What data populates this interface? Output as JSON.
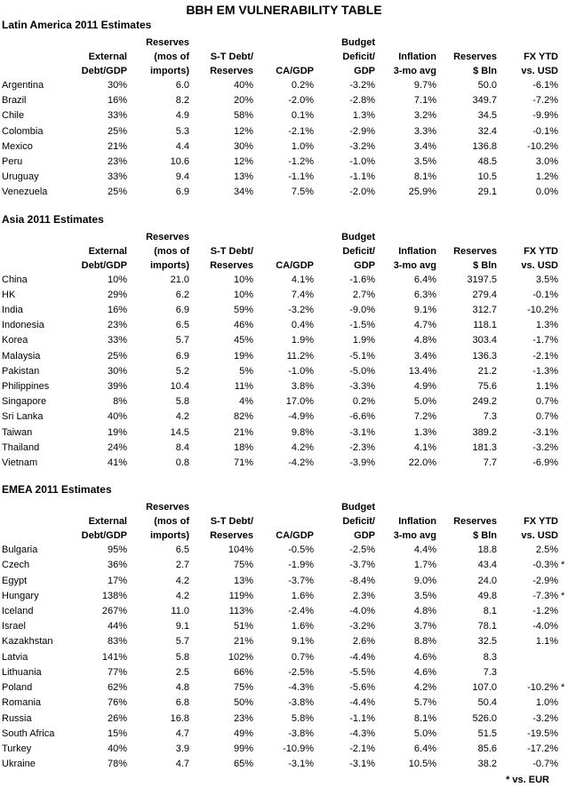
{
  "title": "BBH EM VULNERABILITY TABLE",
  "footnote": "* vs. EUR",
  "columns": [
    {
      "id": "country",
      "label": ""
    },
    {
      "id": "external-debt-gdp",
      "label": "External\nDebt/GDP"
    },
    {
      "id": "reserves-mos-of-imports",
      "label": "Reserves\n(mos of\nimports)"
    },
    {
      "id": "st-debt-reserves",
      "label": "S-T Debt/\nReserves"
    },
    {
      "id": "ca-gdp",
      "label": "CA/GDP"
    },
    {
      "id": "budget-deficit-gdp",
      "label": "Budget\nDeficit/\nGDP"
    },
    {
      "id": "inflation-3mo-avg",
      "label": "Inflation\n3-mo avg"
    },
    {
      "id": "reserves-bln",
      "label": "Reserves\n$ Bln"
    },
    {
      "id": "fx-ytd-vs-usd",
      "label": "FX YTD\nvs. USD"
    },
    {
      "id": "footnote-marker",
      "label": ""
    }
  ],
  "sections": [
    {
      "name": "Latin America 2011 Estimates",
      "rows": [
        {
          "country": "Argentina",
          "values": [
            "30%",
            "6.0",
            "40%",
            "0.2%",
            "-3.2%",
            "9.7%",
            "50.0",
            "-6.1%"
          ],
          "note": ""
        },
        {
          "country": "Brazil",
          "values": [
            "16%",
            "8.2",
            "20%",
            "-2.0%",
            "-2.8%",
            "7.1%",
            "349.7",
            "-7.2%"
          ],
          "note": ""
        },
        {
          "country": "Chile",
          "values": [
            "33%",
            "4.9",
            "58%",
            "0.1%",
            "1.3%",
            "3.2%",
            "34.5",
            "-9.9%"
          ],
          "note": ""
        },
        {
          "country": "Colombia",
          "values": [
            "25%",
            "5.3",
            "12%",
            "-2.1%",
            "-2.9%",
            "3.3%",
            "32.4",
            "-0.1%"
          ],
          "note": ""
        },
        {
          "country": "Mexico",
          "values": [
            "21%",
            "4.4",
            "30%",
            "1.0%",
            "-3.2%",
            "3.4%",
            "136.8",
            "-10.2%"
          ],
          "note": ""
        },
        {
          "country": "Peru",
          "values": [
            "23%",
            "10.6",
            "12%",
            "-1.2%",
            "-1.0%",
            "3.5%",
            "48.5",
            "3.0%"
          ],
          "note": ""
        },
        {
          "country": "Uruguay",
          "values": [
            "33%",
            "9.4",
            "13%",
            "-1.1%",
            "-1.1%",
            "8.1%",
            "10.5",
            "1.2%"
          ],
          "note": ""
        },
        {
          "country": "Venezuela",
          "values": [
            "25%",
            "6.9",
            "34%",
            "7.5%",
            "-2.0%",
            "25.9%",
            "29.1",
            "0.0%"
          ],
          "note": ""
        }
      ]
    },
    {
      "name": "Asia 2011 Estimates",
      "rows": [
        {
          "country": "China",
          "values": [
            "10%",
            "21.0",
            "10%",
            "4.1%",
            "-1.6%",
            "6.4%",
            "3197.5",
            "3.5%"
          ],
          "note": ""
        },
        {
          "country": "HK",
          "values": [
            "29%",
            "6.2",
            "10%",
            "7.4%",
            "2.7%",
            "6.3%",
            "279.4",
            "-0.1%"
          ],
          "note": ""
        },
        {
          "country": "India",
          "values": [
            "16%",
            "6.9",
            "59%",
            "-3.2%",
            "-9.0%",
            "9.1%",
            "312.7",
            "-10.2%"
          ],
          "note": ""
        },
        {
          "country": "Indonesia",
          "values": [
            "23%",
            "6.5",
            "46%",
            "0.4%",
            "-1.5%",
            "4.7%",
            "118.1",
            "1.3%"
          ],
          "note": ""
        },
        {
          "country": "Korea",
          "values": [
            "33%",
            "5.7",
            "45%",
            "1.9%",
            "1.9%",
            "4.8%",
            "303.4",
            "-1.7%"
          ],
          "note": ""
        },
        {
          "country": "Malaysia",
          "values": [
            "25%",
            "6.9",
            "19%",
            "11.2%",
            "-5.1%",
            "3.4%",
            "136.3",
            "-2.1%"
          ],
          "note": ""
        },
        {
          "country": "Pakistan",
          "values": [
            "30%",
            "5.2",
            "5%",
            "-1.0%",
            "-5.0%",
            "13.4%",
            "21.2",
            "-1.3%"
          ],
          "note": ""
        },
        {
          "country": "Philippines",
          "values": [
            "39%",
            "10.4",
            "11%",
            "3.8%",
            "-3.3%",
            "4.9%",
            "75.6",
            "1.1%"
          ],
          "note": ""
        },
        {
          "country": "Singapore",
          "values": [
            "8%",
            "5.8",
            "4%",
            "17.0%",
            "0.2%",
            "5.0%",
            "249.2",
            "0.7%"
          ],
          "note": ""
        },
        {
          "country": "Sri Lanka",
          "values": [
            "40%",
            "4.2",
            "82%",
            "-4.9%",
            "-6.6%",
            "7.2%",
            "7.3",
            "0.7%"
          ],
          "note": ""
        },
        {
          "country": "Taiwan",
          "values": [
            "19%",
            "14.5",
            "21%",
            "9.8%",
            "-3.1%",
            "1.3%",
            "389.2",
            "-3.1%"
          ],
          "note": ""
        },
        {
          "country": "Thailand",
          "values": [
            "24%",
            "8.4",
            "18%",
            "4.2%",
            "-2.3%",
            "4.1%",
            "181.3",
            "-3.2%"
          ],
          "note": ""
        },
        {
          "country": "Vietnam",
          "values": [
            "41%",
            "0.8",
            "71%",
            "-4.2%",
            "-3.9%",
            "22.0%",
            "7.7",
            "-6.9%"
          ],
          "note": ""
        }
      ]
    },
    {
      "name": "EMEA 2011 Estimates",
      "rows": [
        {
          "country": "Bulgaria",
          "values": [
            "95%",
            "6.5",
            "104%",
            "-0.5%",
            "-2.5%",
            "4.4%",
            "18.8",
            "2.5%"
          ],
          "note": ""
        },
        {
          "country": "Czech",
          "values": [
            "36%",
            "2.7",
            "75%",
            "-1.9%",
            "-3.7%",
            "1.7%",
            "43.4",
            "-0.3%"
          ],
          "note": "*"
        },
        {
          "country": "Egypt",
          "values": [
            "17%",
            "4.2",
            "13%",
            "-3.7%",
            "-8.4%",
            "9.0%",
            "24.0",
            "-2.9%"
          ],
          "note": ""
        },
        {
          "country": "Hungary",
          "values": [
            "138%",
            "4.2",
            "119%",
            "1.6%",
            "2.3%",
            "3.5%",
            "49.8",
            "-7.3%"
          ],
          "note": "*"
        },
        {
          "country": "Iceland",
          "values": [
            "267%",
            "11.0",
            "113%",
            "-2.4%",
            "-4.0%",
            "4.8%",
            "8.1",
            "-1.2%"
          ],
          "note": ""
        },
        {
          "country": "Israel",
          "values": [
            "44%",
            "9.1",
            "51%",
            "1.6%",
            "-3.2%",
            "3.7%",
            "78.1",
            "-4.0%"
          ],
          "note": ""
        },
        {
          "country": "Kazakhstan",
          "values": [
            "83%",
            "5.7",
            "21%",
            "9.1%",
            "2.6%",
            "8.8%",
            "32.5",
            "1.1%"
          ],
          "note": ""
        },
        {
          "country": "Latvia",
          "values": [
            "141%",
            "5.8",
            "102%",
            "0.7%",
            "-4.4%",
            "4.6%",
            "8.3",
            ""
          ],
          "note": ""
        },
        {
          "country": "Lithuania",
          "values": [
            "77%",
            "2.5",
            "66%",
            "-2.5%",
            "-5.5%",
            "4.6%",
            "7.3",
            ""
          ],
          "note": ""
        },
        {
          "country": "Poland",
          "values": [
            "62%",
            "4.8",
            "75%",
            "-4.3%",
            "-5.6%",
            "4.2%",
            "107.0",
            "-10.2%"
          ],
          "note": "*"
        },
        {
          "country": "Romania",
          "values": [
            "76%",
            "6.8",
            "50%",
            "-3.8%",
            "-4.4%",
            "5.7%",
            "50.4",
            "1.0%"
          ],
          "note": ""
        },
        {
          "country": "Russia",
          "values": [
            "26%",
            "16.8",
            "23%",
            "5.8%",
            "-1.1%",
            "8.1%",
            "526.0",
            "-3.2%"
          ],
          "note": ""
        },
        {
          "country": "South Africa",
          "values": [
            "15%",
            "4.7",
            "49%",
            "-3.8%",
            "-4.3%",
            "5.0%",
            "51.5",
            "-19.5%"
          ],
          "note": ""
        },
        {
          "country": "Turkey",
          "values": [
            "40%",
            "3.9",
            "99%",
            "-10.9%",
            "-2.1%",
            "6.4%",
            "85.6",
            "-17.2%"
          ],
          "note": ""
        },
        {
          "country": "Ukraine",
          "values": [
            "78%",
            "4.7",
            "65%",
            "-3.1%",
            "-3.1%",
            "10.5%",
            "38.2",
            "-0.7%"
          ],
          "note": ""
        }
      ]
    }
  ]
}
